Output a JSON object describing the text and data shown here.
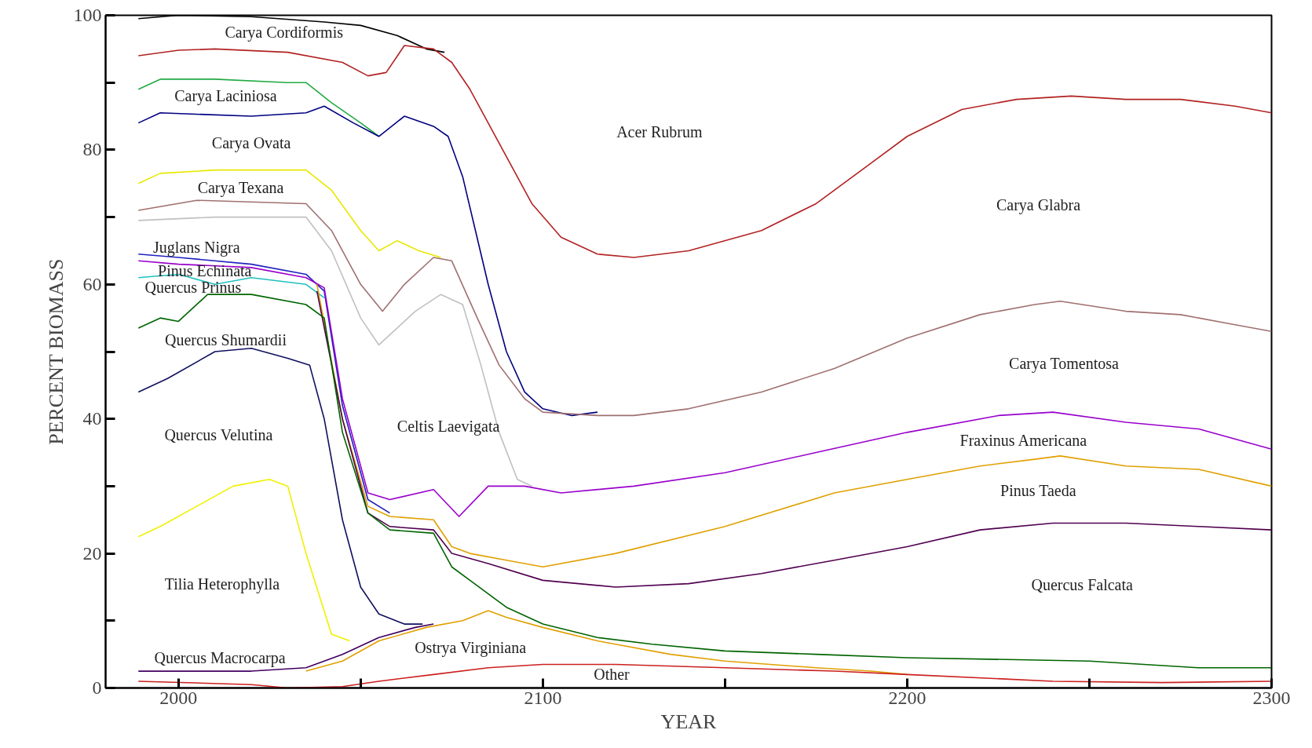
{
  "chart_data": {
    "type": "line",
    "xlabel": "YEAR",
    "ylabel": "PERCENT BIOMASS",
    "xlim": [
      1980,
      2300
    ],
    "ylim": [
      0,
      100
    ],
    "xticks": [
      2000,
      {
        "value": 2050,
        "label": null
      },
      2100,
      {
        "value": 2150,
        "label": null
      },
      2200,
      {
        "value": 2250,
        "label": null
      },
      2300
    ],
    "yticks": [
      0,
      {
        "value": 10,
        "label": null
      },
      20,
      {
        "value": 30,
        "label": null
      },
      40,
      {
        "value": 50,
        "label": null
      },
      60,
      {
        "value": 70,
        "label": null
      },
      80,
      {
        "value": 90,
        "label": null
      },
      100
    ],
    "grid": false,
    "line_style": "solid",
    "marker": "none",
    "series": [
      {
        "color": "#000000",
        "x": [
          1989,
          2000,
          2020,
          2040,
          2050,
          2060,
          2068,
          2073
        ],
        "values": [
          99.5,
          100,
          99.8,
          99,
          98.5,
          97,
          95,
          94.5
        ]
      },
      {
        "color": "#b22222",
        "x": [
          1989,
          2000,
          2010,
          2030,
          2045,
          2052,
          2057,
          2062,
          2070,
          2075,
          2080,
          2088,
          2097,
          2105,
          2115,
          2125,
          2140,
          2160,
          2175,
          2190,
          2200,
          2215,
          2230,
          2245,
          2260,
          2275,
          2290,
          2300
        ],
        "values": [
          94,
          94.8,
          95,
          94.5,
          93,
          91,
          91.5,
          95.5,
          95,
          93,
          89,
          81,
          72,
          67,
          64.5,
          64,
          65,
          68,
          72,
          78,
          82,
          86,
          87.5,
          88,
          87.5,
          87.5,
          86.5,
          85.5
        ]
      },
      {
        "color": "#22aa44",
        "x": [
          1989,
          1995,
          2010,
          2030,
          2035,
          2042,
          2050,
          2055
        ],
        "values": [
          89,
          90.5,
          90.5,
          90,
          90,
          87,
          84,
          82
        ]
      },
      {
        "color": "#000080",
        "x": [
          1989,
          1995,
          2020,
          2035,
          2040,
          2048,
          2055,
          2062,
          2070,
          2074,
          2078,
          2085,
          2090,
          2095,
          2100,
          2108,
          2115
        ],
        "values": [
          84,
          85.5,
          85,
          85.5,
          86.5,
          84,
          82,
          85,
          83.5,
          82,
          76,
          60,
          50,
          44,
          41.5,
          40.5,
          41
        ]
      },
      {
        "color": "#e8e800",
        "x": [
          1989,
          1995,
          2010,
          2035,
          2042,
          2050,
          2055,
          2060,
          2066,
          2072
        ],
        "values": [
          75,
          76.5,
          77,
          77,
          74,
          68,
          65,
          66.5,
          65,
          64
        ]
      },
      {
        "color": "#a07070",
        "x": [
          1989,
          2005,
          2035,
          2042,
          2050,
          2056,
          2062,
          2070,
          2075,
          2082,
          2088,
          2095,
          2100,
          2115,
          2125,
          2140,
          2160,
          2180,
          2200,
          2220,
          2235,
          2242,
          2260,
          2275,
          2290,
          2300
        ],
        "values": [
          71,
          72.5,
          72,
          68,
          60,
          56,
          60,
          64,
          63.5,
          55,
          48,
          43,
          41,
          40.5,
          40.5,
          41.5,
          44,
          47.5,
          52,
          55.5,
          57,
          57.5,
          56,
          55.5,
          54,
          53
        ]
      },
      {
        "color": "#c0c0c0",
        "x": [
          1989,
          2010,
          2035,
          2042,
          2050,
          2055,
          2065,
          2072,
          2078,
          2083,
          2088,
          2093,
          2097
        ],
        "values": [
          69.5,
          70,
          70,
          65,
          55,
          51,
          56,
          58.5,
          57,
          48,
          38,
          31,
          30
        ]
      },
      {
        "color": "#2020c0",
        "x": [
          1989,
          2000,
          2020,
          2035,
          2040,
          2045,
          2052,
          2058
        ],
        "values": [
          64.5,
          64,
          63,
          61.5,
          59,
          42,
          28,
          26
        ]
      },
      {
        "color": "#20c0c0",
        "x": [
          1989,
          2000,
          2010,
          2020,
          2035,
          2040
        ],
        "values": [
          61,
          61.5,
          60,
          61,
          60,
          58
        ]
      },
      {
        "color": "#9900cc",
        "x": [
          1989,
          2000,
          2020,
          2035,
          2040,
          2045,
          2052,
          2058,
          2070,
          2077,
          2085,
          2095,
          2105,
          2125,
          2150,
          2175,
          2200,
          2225,
          2240,
          2260,
          2280,
          2300
        ],
        "values": [
          63.5,
          63,
          62.5,
          61,
          59.5,
          43,
          29,
          28,
          29.5,
          25.5,
          30,
          30,
          29,
          30,
          32,
          35,
          38,
          40.5,
          41,
          39.5,
          38.5,
          35.5
        ]
      },
      {
        "color": "#e0a000",
        "x": [
          2038,
          2045,
          2052,
          2058,
          2070,
          2075,
          2080,
          2090,
          2100,
          2120,
          2150,
          2180,
          2200,
          2220,
          2235,
          2242,
          2260,
          2280,
          2300
        ],
        "values": [
          60,
          40,
          27,
          25.5,
          25,
          21,
          20,
          19,
          18,
          20,
          24,
          29,
          31,
          33,
          34,
          34.5,
          33,
          32.5,
          30
        ]
      },
      {
        "color": "#500050",
        "x": [
          2038,
          2045,
          2052,
          2058,
          2070,
          2075,
          2085,
          2100,
          2120,
          2140,
          2160,
          2180,
          2200,
          2220,
          2240,
          2260,
          2280,
          2300
        ],
        "values": [
          59,
          40,
          26,
          24,
          23.5,
          20,
          18.5,
          16,
          15,
          15.5,
          17,
          19,
          21,
          23.5,
          24.5,
          24.5,
          24,
          23.5
        ]
      },
      {
        "color": "#006400",
        "x": [
          1989,
          1995,
          2000,
          2008,
          2020,
          2035,
          2040,
          2045,
          2052,
          2058,
          2070,
          2075,
          2080,
          2090,
          2100,
          2115,
          2130,
          2150,
          2175,
          2200,
          2250,
          2280,
          2300
        ],
        "values": [
          53.5,
          55,
          54.5,
          58.5,
          58.5,
          57,
          55,
          38,
          26,
          23.5,
          23,
          18,
          16,
          12,
          9.5,
          7.5,
          6.5,
          5.5,
          5,
          4.5,
          4,
          3,
          3
        ]
      },
      {
        "color": "#101060",
        "x": [
          1989,
          1997,
          2010,
          2020,
          2030,
          2036,
          2040,
          2045,
          2050,
          2055,
          2062,
          2067
        ],
        "values": [
          44,
          46,
          50,
          50.5,
          49,
          48,
          40,
          25,
          15,
          11,
          9.5,
          9.5
        ]
      },
      {
        "color": "#f0f000",
        "x": [
          1989,
          1995,
          2005,
          2015,
          2025,
          2030,
          2035,
          2042,
          2047
        ],
        "values": [
          22.5,
          24,
          27,
          30,
          31,
          30,
          20,
          8,
          7
        ]
      },
      {
        "color": "#400060",
        "x": [
          1989,
          2020,
          2035,
          2045,
          2055,
          2065,
          2070
        ],
        "values": [
          2.5,
          2.5,
          3,
          5,
          7.5,
          9,
          9.5
        ]
      },
      {
        "color": "#e0a000",
        "x": [
          2035,
          2045,
          2055,
          2068,
          2078,
          2085,
          2090,
          2100,
          2115,
          2135,
          2150,
          2175,
          2190,
          2200
        ],
        "values": [
          2.5,
          4,
          7,
          9,
          10,
          11.5,
          10.5,
          9,
          7,
          5,
          4,
          3,
          2.5,
          2
        ]
      },
      {
        "color": "#cc2020",
        "x": [
          1989,
          2020,
          2030,
          2045,
          2055,
          2070,
          2085,
          2100,
          2120,
          2150,
          2180,
          2200,
          2240,
          2270,
          2300
        ],
        "values": [
          1,
          0.5,
          0,
          0.2,
          1,
          2,
          3,
          3.5,
          3.5,
          3,
          2.5,
          2,
          1,
          0.8,
          1
        ]
      }
    ],
    "annotations": [
      "Carya Cordiformis",
      "Carya Laciniosa",
      "Carya Ovata",
      "Carya Texana",
      "Juglans Nigra",
      "Pinus Echinata",
      "Quercus Prinus",
      "Quercus Shumardii",
      "Quercus Velutina",
      "Tilia Heterophylla",
      "Quercus Macrocarpa",
      "Celtis Laevigata",
      "Ostrya Virginiana",
      "Other",
      "Acer Rubrum",
      "Carya Glabra",
      "Carya Tomentosa",
      "Fraxinus Americana",
      "Pinus Taeda",
      "Quercus Falcata"
    ]
  }
}
